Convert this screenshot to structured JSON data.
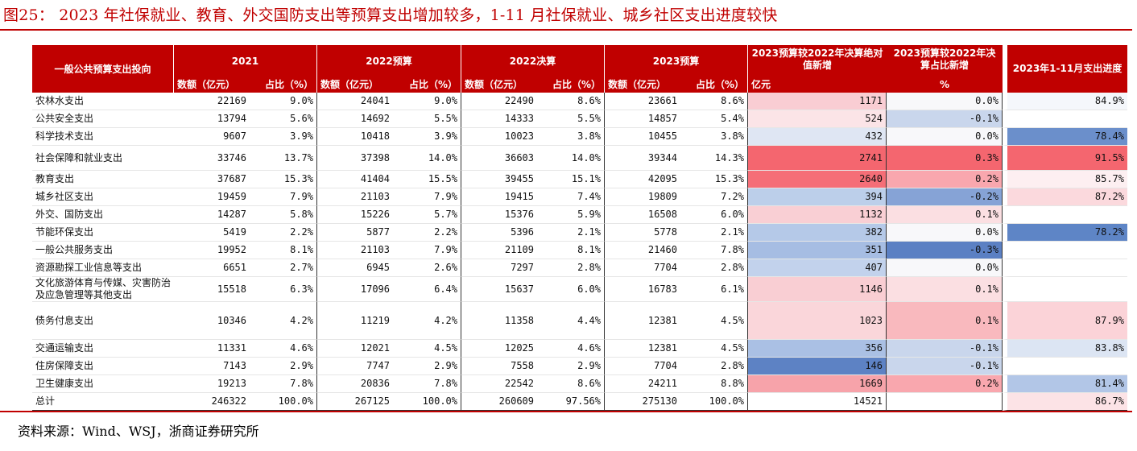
{
  "title": "图25： 2023 年社保就业、教育、外交国防支出等预算支出增加较多，1-11 月社保就业、城乡社区支出进度较快",
  "source": "资料来源：Wind、WSJ，浙商证券研究所",
  "header": {
    "row_label": "一般公共预算支出投向",
    "groups": [
      "2021",
      "2022预算",
      "2022决算",
      "2023预算"
    ],
    "sub_amount": "数额（亿元）",
    "sub_share": "占比（%）",
    "change_amount": "2023预算较2022年决算绝对值新增",
    "change_amount_unit": "亿元",
    "change_share": "2023预算较2022年决算占比新增",
    "change_share_unit": "%",
    "progress": "2023年1-11月支出进度"
  },
  "rows": [
    {
      "name": "农林水支出",
      "v21": "22169",
      "s21": "9.0%",
      "v22b": "24041",
      "s22b": "9.0%",
      "v22f": "22490",
      "s22f": "8.6%",
      "v23": "23661",
      "s23": "8.6%",
      "dv": "1171",
      "ds": "0.0%",
      "prog": "84.9%",
      "c_dv": "#f9cdd3",
      "c_ds": "#f8f8fa",
      "c_prog": "#f5f7fb"
    },
    {
      "name": "公共安全支出",
      "v21": "13794",
      "s21": "5.6%",
      "v22b": "14692",
      "s22b": "5.5%",
      "v22f": "14333",
      "s22f": "5.5%",
      "v23": "14857",
      "s23": "5.4%",
      "dv": "524",
      "ds": "-0.1%",
      "prog": "",
      "c_dv": "#fbe4e7",
      "c_ds": "#c9d6ec",
      "c_prog": "#ffffff"
    },
    {
      "name": "科学技术支出",
      "v21": "9607",
      "s21": "3.9%",
      "v22b": "10418",
      "s22b": "3.9%",
      "v22f": "10023",
      "s22f": "3.8%",
      "v23": "10455",
      "s23": "3.8%",
      "dv": "432",
      "ds": "0.0%",
      "prog": "78.4%",
      "c_dv": "#dfe6f3",
      "c_ds": "#f8f8fa",
      "c_prog": "#6b8fcb"
    },
    {
      "name": "社会保障和就业支出",
      "v21": "33746",
      "s21": "13.7%",
      "v22b": "37398",
      "s22b": "14.0%",
      "v22f": "36603",
      "s22f": "14.0%",
      "v23": "39344",
      "s23": "14.3%",
      "dv": "2741",
      "ds": "0.3%",
      "prog": "91.5%",
      "c_dv": "#f4666f",
      "c_ds": "#f4666f",
      "c_prog": "#f4666f"
    },
    {
      "name": "教育支出",
      "v21": "37687",
      "s21": "15.3%",
      "v22b": "41404",
      "s22b": "15.5%",
      "v22f": "39455",
      "s22f": "15.1%",
      "v23": "42095",
      "s23": "15.3%",
      "dv": "2640",
      "ds": "0.2%",
      "prog": "85.7%",
      "c_dv": "#f56e77",
      "c_ds": "#f9a7ae",
      "c_prog": "#fdeff1"
    },
    {
      "name": "城乡社区支出",
      "v21": "19459",
      "s21": "7.9%",
      "v22b": "21103",
      "s22b": "7.9%",
      "v22f": "19415",
      "s22f": "7.4%",
      "v23": "19809",
      "s23": "7.2%",
      "dv": "394",
      "ds": "-0.2%",
      "prog": "87.2%",
      "c_dv": "#bccfea",
      "c_ds": "#86a3d6",
      "c_prog": "#fbd9dd"
    },
    {
      "name": "外交、国防支出",
      "v21": "14287",
      "s21": "5.8%",
      "v22b": "15226",
      "s22b": "5.7%",
      "v22f": "15376",
      "s22f": "5.9%",
      "v23": "16508",
      "s23": "6.0%",
      "dv": "1132",
      "ds": "0.1%",
      "prog": "",
      "c_dv": "#f9cfd4",
      "c_ds": "#fbdfe2",
      "c_prog": "#ffffff"
    },
    {
      "name": "节能环保支出",
      "v21": "5419",
      "s21": "2.2%",
      "v22b": "5877",
      "s22b": "2.2%",
      "v22f": "5396",
      "s22f": "2.1%",
      "v23": "5778",
      "s23": "2.1%",
      "dv": "382",
      "ds": "0.0%",
      "prog": "78.2%",
      "c_dv": "#b5c9e8",
      "c_ds": "#f8f8fa",
      "c_prog": "#5e85c6"
    },
    {
      "name": "一般公共服务支出",
      "v21": "19952",
      "s21": "8.1%",
      "v22b": "21103",
      "s22b": "7.9%",
      "v22f": "21109",
      "s22f": "8.1%",
      "v23": "21460",
      "s23": "7.8%",
      "dv": "351",
      "ds": "-0.3%",
      "prog": "",
      "c_dv": "#a6bde3",
      "c_ds": "#5b80c3",
      "c_prog": "#ffffff"
    },
    {
      "name": "资源勘探工业信息等支出",
      "v21": "6651",
      "s21": "2.7%",
      "v22b": "6945",
      "s22b": "2.6%",
      "v22f": "7297",
      "s22f": "2.8%",
      "v23": "7704",
      "s23": "2.8%",
      "dv": "407",
      "ds": "0.0%",
      "prog": "",
      "c_dv": "#c2d2ec",
      "c_ds": "#f8f8fa",
      "c_prog": "#ffffff"
    },
    {
      "name": "文化旅游体育与传媒、灾害防治及应急管理等其他支出",
      "v21": "15518",
      "s21": "6.3%",
      "v22b": "17096",
      "s22b": "6.4%",
      "v22f": "15637",
      "s22f": "6.0%",
      "v23": "16783",
      "s23": "6.1%",
      "dv": "1146",
      "ds": "0.1%",
      "prog": "",
      "c_dv": "#f9ced3",
      "c_ds": "#fbdfe2",
      "c_prog": "#ffffff"
    },
    {
      "name": "债务付息支出",
      "v21": "10346",
      "s21": "4.2%",
      "v22b": "11219",
      "s22b": "4.2%",
      "v22f": "11358",
      "s22f": "4.4%",
      "v23": "12381",
      "s23": "4.5%",
      "dv": "1023",
      "ds": "0.1%",
      "prog": "87.9%",
      "c_dv": "#fad6da",
      "c_ds": "#f9b9be",
      "c_prog": "#fbd3d8"
    },
    {
      "name": "交通运输支出",
      "v21": "11331",
      "s21": "4.6%",
      "v22b": "12021",
      "s22b": "4.5%",
      "v22f": "12025",
      "s22f": "4.6%",
      "v23": "12381",
      "s23": "4.5%",
      "dv": "356",
      "ds": "-0.1%",
      "prog": "83.8%",
      "c_dv": "#aac0e4",
      "c_ds": "#c9d6ec",
      "c_prog": "#dce5f3"
    },
    {
      "name": "住房保障支出",
      "v21": "7143",
      "s21": "2.9%",
      "v22b": "7747",
      "s22b": "2.9%",
      "v22f": "7558",
      "s22f": "2.9%",
      "v23": "7704",
      "s23": "2.8%",
      "dv": "146",
      "ds": "-0.1%",
      "prog": "",
      "c_dv": "#5d82c4",
      "c_ds": "#c9d6ec",
      "c_prog": "#ffffff"
    },
    {
      "name": "卫生健康支出",
      "v21": "19213",
      "s21": "7.8%",
      "v22b": "20836",
      "s22b": "7.8%",
      "v22f": "22542",
      "s22f": "8.6%",
      "v23": "24211",
      "s23": "8.8%",
      "dv": "1669",
      "ds": "0.2%",
      "prog": "81.4%",
      "c_dv": "#f7a3aa",
      "c_ds": "#f9a7ae",
      "c_prog": "#b2c6e7"
    },
    {
      "name": "总计",
      "v21": "246322",
      "s21": "100.0%",
      "v22b": "267125",
      "s22b": "100.0%",
      "v22f": "260609",
      "s22f": "97.56%",
      "v23": "275130",
      "s23": "100.0%",
      "dv": "14521",
      "ds": "",
      "prog": "86.7%",
      "c_dv": "#ffffff",
      "c_ds": "#ffffff",
      "c_prog": "#fce3e6"
    }
  ]
}
